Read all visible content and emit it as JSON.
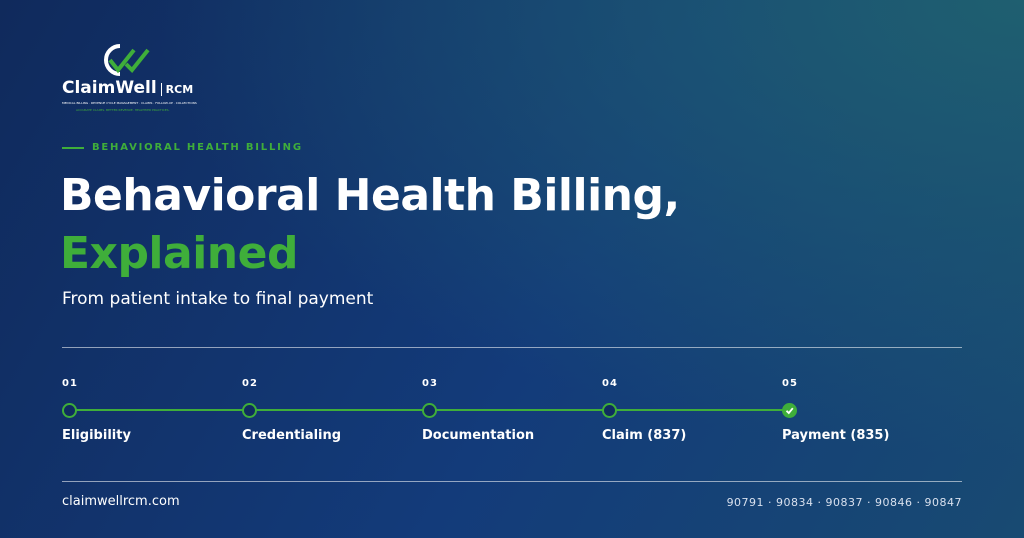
{
  "logo": {
    "name": "ClaimWell",
    "suffix": "RCM",
    "services": "MEDICAL BILLING · REVENUE CYCLE MANAGEMENT · CLAIMS · FOLLOW-UP · COLLECTIONS",
    "tagline": "ACCURATE CLAIMS. BETTER REVENUE. HEALTHIER PRACTICES."
  },
  "header": {
    "eyebrow": "BEHAVIORAL HEALTH BILLING",
    "title_line1": "Behavioral Health Billing,",
    "title_line2": "Explained",
    "subtitle": "From patient intake to final payment"
  },
  "steps": [
    {
      "number": "01",
      "label": "Eligibility"
    },
    {
      "number": "02",
      "label": "Credentialing"
    },
    {
      "number": "03",
      "label": "Documentation"
    },
    {
      "number": "04",
      "label": "Claim (837)"
    },
    {
      "number": "05",
      "label": "Payment (835)"
    }
  ],
  "footer": {
    "url": "claimwellrcm.com",
    "codes": "90791 · 90834 · 90837 · 90846 · 90847"
  }
}
